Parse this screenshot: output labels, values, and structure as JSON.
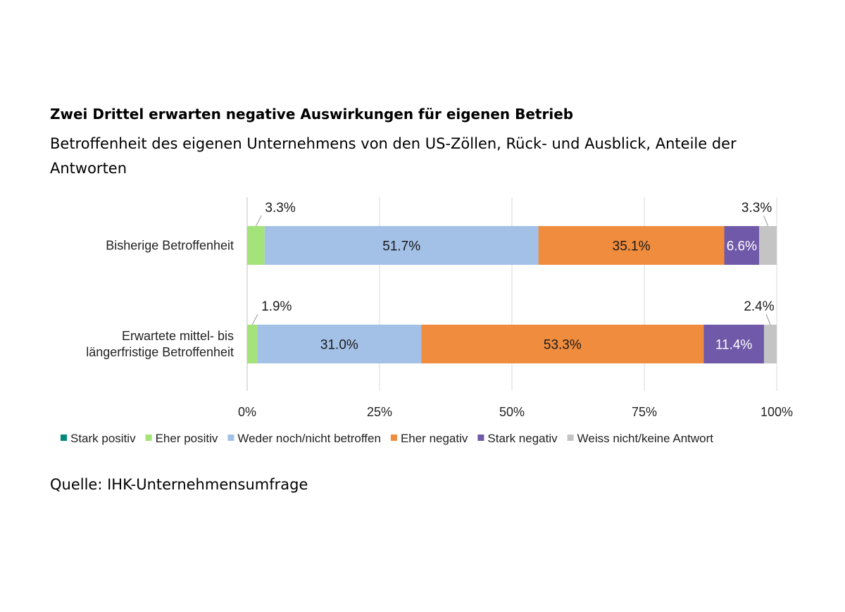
{
  "title": "Zwei Drittel erwarten negative Auswirkungen für eigenen Betrieb",
  "subtitle": "Betroffenheit des eigenen Unternehmens von den US-Zöllen, Rück- und Ausblick, Anteile der Antworten",
  "source": "Quelle: IHK-Unternehmensumfrage",
  "chart_data": {
    "type": "bar",
    "orientation": "horizontal",
    "stacked": true,
    "categories": [
      [
        "Bisherige Betroffenheit"
      ],
      [
        "Erwartete mittel- bis",
        "längerfristige Betroffenheit"
      ]
    ],
    "series": [
      {
        "name": "Stark positiv",
        "color": "#00897b",
        "values": [
          0,
          0
        ],
        "labels": [
          "",
          ""
        ]
      },
      {
        "name": "Eher positiv",
        "color": "#a4e27a",
        "values": [
          3.3,
          1.9
        ],
        "labels": [
          "3.3%",
          "1.9%"
        ]
      },
      {
        "name": "Weder noch/nicht betroffen",
        "color": "#a3c0e6",
        "values": [
          51.7,
          31.0
        ],
        "labels": [
          "51.7%",
          "31.0%"
        ]
      },
      {
        "name": "Eher negativ",
        "color": "#f08c3e",
        "values": [
          35.1,
          53.3
        ],
        "labels": [
          "35.1%",
          "53.3%"
        ]
      },
      {
        "name": "Stark negativ",
        "color": "#7059a8",
        "values": [
          6.6,
          11.4
        ],
        "labels": [
          "6.6%",
          "11.4%"
        ]
      },
      {
        "name": "Weiss nicht/keine Antwort",
        "color": "#c4c4c4",
        "values": [
          3.3,
          2.4
        ],
        "labels": [
          "3.3%",
          "2.4%"
        ]
      }
    ],
    "xlim": [
      0,
      100
    ],
    "xticks": [
      0,
      25,
      50,
      75,
      100
    ],
    "xtick_labels": [
      "0%",
      "25%",
      "50%",
      "75%",
      "100%"
    ],
    "grid": true,
    "legend_position": "bottom"
  }
}
